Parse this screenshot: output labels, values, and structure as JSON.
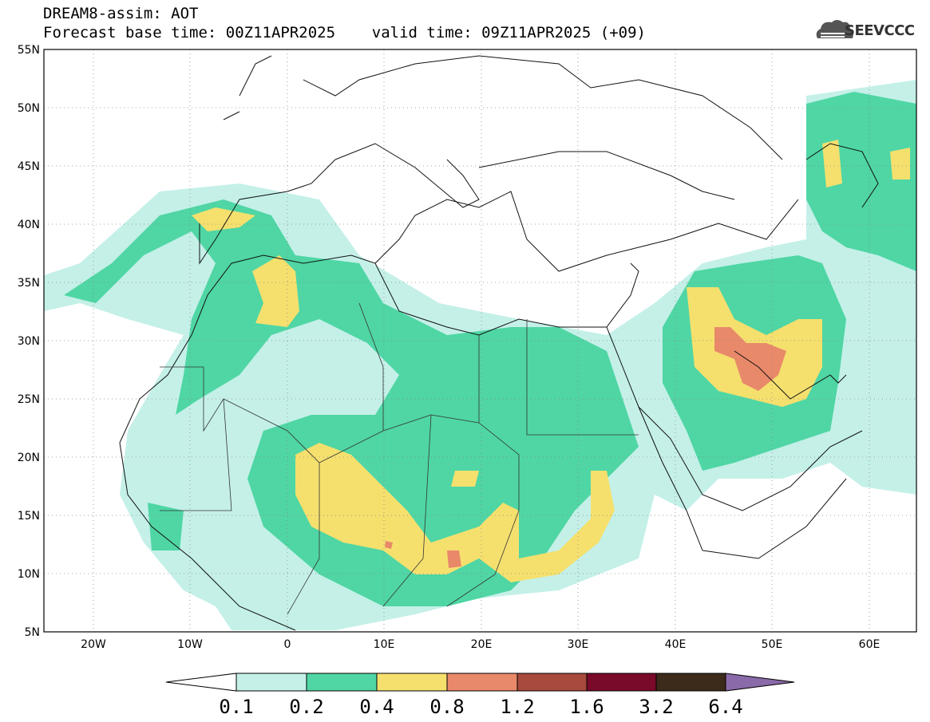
{
  "header": {
    "line1": "DREAM8-assim: AOT",
    "line2": "Forecast base time: 00Z11APR2025    valid time: 09Z11APR2025 (+09)"
  },
  "logo": {
    "text": "SEEVCCC",
    "icon": "cloud-icon"
  },
  "map": {
    "lon_range": [
      -25,
      65
    ],
    "lat_range": [
      5,
      55
    ],
    "lat_ticks": [
      "5N",
      "10N",
      "15N",
      "20N",
      "25N",
      "30N",
      "35N",
      "40N",
      "45N",
      "50N",
      "55N"
    ],
    "lon_ticks": [
      "20W",
      "10W",
      "0",
      "10E",
      "20E",
      "30E",
      "40E",
      "50E",
      "60E"
    ],
    "grid": "dotted"
  },
  "colorbar": {
    "labels": [
      "0.1",
      "0.2",
      "0.4",
      "0.8",
      "1.2",
      "1.6",
      "3.2",
      "6.4"
    ],
    "colors": [
      "#c4f0e8",
      "#4fd6a4",
      "#f5e06e",
      "#e8896a",
      "#a84a3c",
      "#7a0a2a",
      "#3c2a1a",
      "#8a6aa8"
    ]
  }
}
